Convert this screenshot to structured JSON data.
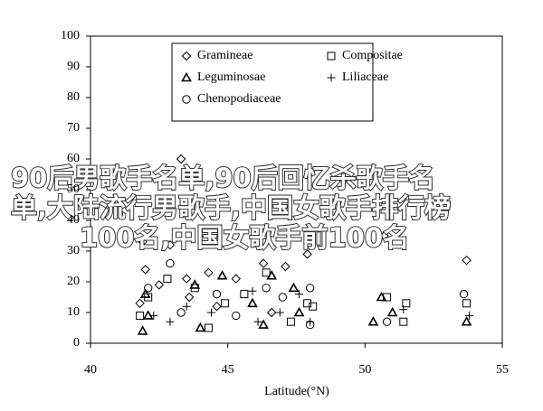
{
  "chart_data": {
    "type": "scatter",
    "x_label": "Latitude(°N)",
    "xlim": [
      40,
      55
    ],
    "xticks": [
      40,
      45,
      50,
      55
    ],
    "ylim": [
      0,
      100
    ],
    "yticks": [
      0,
      10,
      20,
      30,
      40,
      50,
      60,
      70,
      80,
      90,
      100
    ],
    "series": [
      {
        "name": "Gramineae",
        "marker": "diamond",
        "color": "#000000",
        "x": [
          43.3,
          41.9,
          42.9,
          42.0,
          43.5,
          44.3,
          42.5,
          45.3,
          46.3,
          47.1,
          47.9,
          50.7,
          53.7,
          41.8,
          44.6,
          46.6,
          43.6
        ],
        "values": [
          60,
          33,
          32,
          24,
          21,
          23,
          19,
          21,
          26,
          25,
          29,
          35,
          27,
          13,
          12,
          10,
          15
        ]
      },
      {
        "name": "Compositae",
        "marker": "square",
        "color": "#000000",
        "x": [
          41.8,
          42.8,
          43.8,
          44.9,
          45.6,
          46.4,
          47.9,
          48.1,
          50.8,
          51.4,
          51.5,
          53.7,
          44.3,
          42.1,
          47.3
        ],
        "values": [
          9,
          21,
          18,
          13,
          16,
          23,
          13,
          12,
          15,
          7,
          13,
          13,
          5,
          15,
          7
        ]
      },
      {
        "name": "Leguminosae",
        "marker": "triangle",
        "color": "#000000",
        "x": [
          42.0,
          42.1,
          43.8,
          44.8,
          45.9,
          46.6,
          47.4,
          47.6,
          50.3,
          50.6,
          51.0,
          53.7,
          41.9,
          44.0,
          46.3
        ],
        "values": [
          16,
          9,
          19,
          22,
          13,
          22,
          18,
          10,
          7,
          15,
          10,
          7,
          4,
          5,
          6
        ]
      },
      {
        "name": "Liliaceae",
        "marker": "plus",
        "color": "#000000",
        "x": [
          42.3,
          43.5,
          44.4,
          45.9,
          46.1,
          47.6,
          48.0,
          51.4,
          53.8,
          46.9,
          42.9
        ],
        "values": [
          9,
          12,
          10,
          17,
          7,
          16,
          7,
          11,
          9,
          10,
          7
        ]
      },
      {
        "name": "Chenopodiaceae",
        "marker": "circle",
        "color": "#000000",
        "x": [
          42.9,
          42.1,
          43.3,
          44.6,
          45.3,
          46.4,
          47.0,
          48.0,
          50.8,
          53.6,
          48.0
        ],
        "values": [
          26,
          18,
          10,
          16,
          9,
          18,
          15,
          18,
          7,
          16,
          6
        ]
      }
    ]
  },
  "overlay_text": [
    "90后男歌手名单,90后回忆杀歌手名",
    "单,大陆流行男歌手,中国女歌手排行榜",
    "100名,中国女歌手前100名"
  ]
}
